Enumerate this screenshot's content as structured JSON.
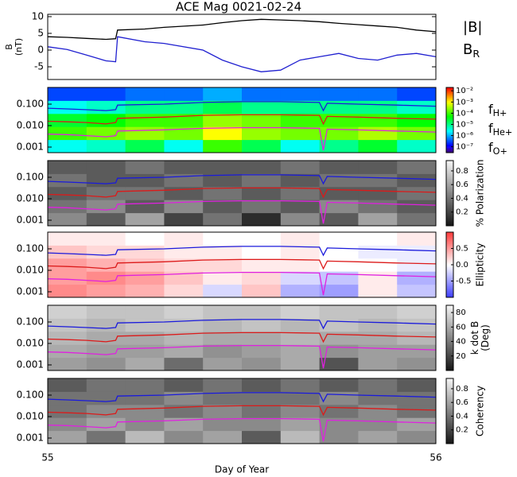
{
  "chart_data": [
    {
      "type": "line",
      "title": "ACE Mag 0021-02-24",
      "y_label": [
        "B",
        "(nT)"
      ],
      "x": [
        55.0,
        55.05,
        55.1,
        55.15,
        55.175,
        55.18,
        55.25,
        55.3,
        55.4,
        55.45,
        55.5,
        55.55,
        55.6,
        55.65,
        55.7,
        55.75,
        55.8,
        55.85,
        55.9,
        55.95,
        56.0
      ],
      "series": [
        {
          "name": "|B|",
          "color": "#000000",
          "values": [
            4,
            3.8,
            3.5,
            3.2,
            3.4,
            6,
            6.3,
            6.8,
            7.5,
            8.2,
            8.8,
            9.2,
            9,
            8.8,
            8.5,
            8,
            7.6,
            7.2,
            6.8,
            6,
            5.5
          ]
        },
        {
          "name": "BR",
          "color": "#2020d0",
          "values": [
            1,
            0.2,
            -1.5,
            -3.2,
            -3.5,
            4,
            2.5,
            2,
            0,
            -3,
            -5,
            -6.5,
            -6,
            -3,
            -2,
            -1,
            -2.5,
            -3,
            -1.5,
            -1,
            -2
          ]
        }
      ],
      "xlim": [
        55,
        56
      ],
      "ylim": [
        -8.8,
        10.7
      ],
      "yticks": [
        -5,
        0,
        5,
        10
      ]
    },
    {
      "type": "heatmap",
      "colormap": "rainbow",
      "log_color": true,
      "clim": [
        3e-08,
        0.02
      ],
      "colorbar_ticks": [
        {
          "value": 0.01,
          "label": "10⁻²"
        },
        {
          "value": 0.001,
          "label": "10⁻³"
        },
        {
          "value": 0.0001,
          "label": "10⁻⁴"
        },
        {
          "value": 1e-05,
          "label": "10⁻⁵"
        },
        {
          "value": 1e-06,
          "label": "10⁻⁶"
        },
        {
          "value": 1e-07,
          "label": "10⁻⁷"
        }
      ],
      "xlim": [
        55,
        56
      ],
      "ylim": [
        0.00055,
        0.6
      ],
      "log_y": true,
      "yticks": [
        {
          "value": 0.001,
          "label": "0.001"
        },
        {
          "value": 0.01,
          "label": "0.010"
        },
        {
          "value": 0.1,
          "label": "0.100"
        }
      ],
      "z": [
        [
          3e-06,
          5e-06,
          2e-05,
          3e-06,
          0.0001,
          2e-05,
          3e-06,
          1e-05,
          3e-05,
          5e-06
        ],
        [
          0.0001,
          0.0002,
          0.0003,
          0.0002,
          0.001,
          0.0003,
          0.0002,
          0.0002,
          0.0004,
          0.0002
        ],
        [
          3e-05,
          5e-05,
          0.0001,
          0.0001,
          0.0003,
          0.0002,
          0.0001,
          0.0001,
          0.0001,
          5e-05
        ],
        [
          3e-06,
          5e-06,
          1e-05,
          1e-05,
          2e-05,
          1e-05,
          1e-05,
          1e-05,
          1e-05,
          5e-06
        ],
        [
          3e-07,
          3e-07,
          5e-07,
          5e-07,
          1e-06,
          5e-07,
          5e-07,
          5e-07,
          5e-07,
          3e-07
        ]
      ],
      "x": [
        55.0,
        55.05,
        55.1,
        55.15,
        55.175,
        55.18,
        55.3,
        55.4,
        55.5,
        55.6,
        55.7,
        55.71,
        55.72,
        55.8,
        55.9,
        56.0
      ],
      "series": [
        {
          "name": "fH+",
          "color": "#1a1adc",
          "values": [
            0.065,
            0.06,
            0.055,
            0.05,
            0.055,
            0.09,
            0.1,
            0.12,
            0.13,
            0.13,
            0.12,
            0.05,
            0.11,
            0.1,
            0.09,
            0.08
          ]
        },
        {
          "name": "fHe+",
          "color": "#dc1a1a",
          "values": [
            0.016,
            0.015,
            0.014,
            0.012,
            0.014,
            0.022,
            0.025,
            0.03,
            0.032,
            0.032,
            0.03,
            0.012,
            0.027,
            0.025,
            0.022,
            0.02
          ]
        },
        {
          "name": "fO+",
          "color": "#e020e0",
          "values": [
            0.004,
            0.0038,
            0.0034,
            0.003,
            0.0034,
            0.0056,
            0.0063,
            0.0075,
            0.008,
            0.008,
            0.0075,
            0.0007,
            0.0068,
            0.0063,
            0.0056,
            0.005
          ]
        }
      ]
    },
    {
      "type": "heatmap",
      "colormap": "gray",
      "clim": [
        0,
        0.95
      ],
      "colorbar_label": [
        "% Polarization"
      ],
      "colorbar_ticks": [
        0.2,
        0.4,
        0.6,
        0.8
      ],
      "xlim": [
        55,
        56
      ],
      "ylim": [
        0.00055,
        0.6
      ],
      "log_y": true,
      "yticks": [
        {
          "value": 0.001,
          "label": "0.001"
        },
        {
          "value": 0.01,
          "label": "0.010"
        },
        {
          "value": 0.1,
          "label": "0.100"
        }
      ],
      "z": [
        [
          0.5,
          0.3,
          0.6,
          0.2,
          0.4,
          0.1,
          0.5,
          0.3,
          0.6,
          0.4
        ],
        [
          0.4,
          0.5,
          0.3,
          0.5,
          0.3,
          0.4,
          0.3,
          0.5,
          0.4,
          0.3
        ],
        [
          0.3,
          0.4,
          0.4,
          0.3,
          0.4,
          0.3,
          0.4,
          0.3,
          0.3,
          0.4
        ],
        [
          0.4,
          0.3,
          0.3,
          0.4,
          0.3,
          0.4,
          0.3,
          0.4,
          0.4,
          0.3
        ],
        [
          0.3,
          0.3,
          0.4,
          0.3,
          0.3,
          0.3,
          0.4,
          0.3,
          0.3,
          0.4
        ]
      ]
    },
    {
      "type": "heatmap",
      "colormap": "bwr",
      "clim": [
        -1,
        1
      ],
      "colorbar_label": [
        "Ellipticity"
      ],
      "colorbar_ticks": [
        -0.5,
        {
          "value": 0,
          "label": "0.0"
        },
        0.5
      ],
      "xlim": [
        55,
        56
      ],
      "ylim": [
        0.00055,
        0.6
      ],
      "log_y": true,
      "yticks": [
        {
          "value": 0.001,
          "label": "0.001"
        },
        {
          "value": 0.01,
          "label": "0.010"
        },
        {
          "value": 0.1,
          "label": "0.100"
        }
      ],
      "z": [
        [
          0.6,
          0.5,
          0.4,
          0.2,
          -0.2,
          0.3,
          -0.4,
          -0.5,
          0.1,
          -0.3
        ],
        [
          0.5,
          0.6,
          0.5,
          0.3,
          0.1,
          0.2,
          -0.2,
          -0.3,
          0.1,
          -0.4
        ],
        [
          0.5,
          0.4,
          0.3,
          0.2,
          0.2,
          0.1,
          0.1,
          0.0,
          0.0,
          -0.1
        ],
        [
          0.3,
          0.2,
          0.2,
          0.1,
          0.1,
          0.0,
          0.1,
          0.0,
          -0.1,
          -0.1
        ],
        [
          0.1,
          0.1,
          0.0,
          0.1,
          0.0,
          0.0,
          0.1,
          0.0,
          0.0,
          0.1
        ]
      ]
    },
    {
      "type": "heatmap",
      "colormap": "gray",
      "clim": [
        0,
        90
      ],
      "colorbar_label": [
        "k dot B",
        "(Deg)"
      ],
      "colorbar_ticks": [
        20,
        40,
        60,
        80
      ],
      "xlim": [
        55,
        56
      ],
      "ylim": [
        0.00055,
        0.6
      ],
      "log_y": true,
      "yticks": [
        {
          "value": 0.001,
          "label": "0.001"
        },
        {
          "value": 0.01,
          "label": "0.010"
        },
        {
          "value": 0.1,
          "label": "0.100"
        }
      ],
      "z": [
        [
          55,
          50,
          60,
          35,
          55,
          50,
          60,
          25,
          55,
          50
        ],
        [
          60,
          55,
          55,
          60,
          50,
          55,
          60,
          50,
          55,
          55
        ],
        [
          65,
          60,
          60,
          65,
          60,
          60,
          65,
          60,
          60,
          65
        ],
        [
          70,
          65,
          70,
          70,
          65,
          70,
          65,
          70,
          65,
          70
        ],
        [
          75,
          70,
          70,
          75,
          70,
          70,
          75,
          70,
          70,
          75
        ]
      ]
    },
    {
      "type": "heatmap",
      "colormap": "gray",
      "clim": [
        0,
        0.95
      ],
      "colorbar_label": [
        "Coherency"
      ],
      "colorbar_ticks": [
        0.2,
        0.4,
        0.6,
        0.8
      ],
      "xlim": [
        55,
        56
      ],
      "ylim": [
        0.00055,
        0.6
      ],
      "log_y": true,
      "yticks": [
        {
          "value": 0.001,
          "label": "0.001"
        },
        {
          "value": 0.01,
          "label": "0.010"
        },
        {
          "value": 0.1,
          "label": "0.100"
        }
      ],
      "xticks": [
        55,
        56
      ],
      "x_label": "Day of Year",
      "z": [
        [
          0.6,
          0.4,
          0.7,
          0.5,
          0.6,
          0.3,
          0.7,
          0.5,
          0.6,
          0.5
        ],
        [
          0.5,
          0.6,
          0.5,
          0.6,
          0.5,
          0.5,
          0.6,
          0.5,
          0.5,
          0.6
        ],
        [
          0.4,
          0.5,
          0.5,
          0.4,
          0.5,
          0.4,
          0.5,
          0.4,
          0.5,
          0.4
        ],
        [
          0.4,
          0.4,
          0.4,
          0.5,
          0.4,
          0.4,
          0.4,
          0.5,
          0.4,
          0.4
        ],
        [
          0.3,
          0.4,
          0.4,
          0.3,
          0.4,
          0.3,
          0.4,
          0.3,
          0.4,
          0.3
        ]
      ]
    }
  ]
}
